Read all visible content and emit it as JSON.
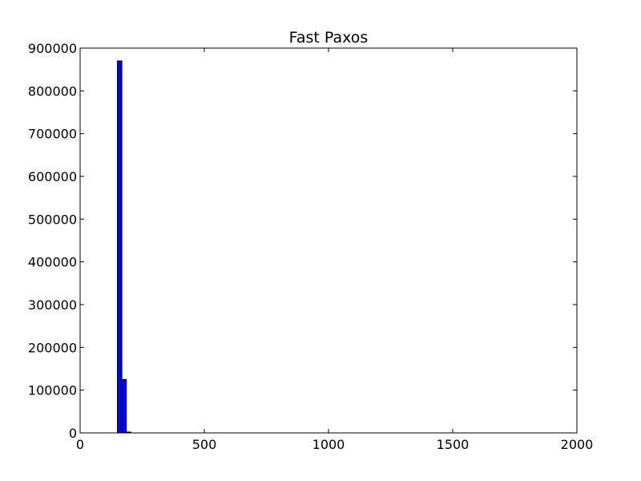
{
  "chart_data": {
    "type": "bar",
    "title": "Fast Paxos",
    "xlabel": "",
    "ylabel": "",
    "xlim": [
      0,
      2000
    ],
    "ylim": [
      0,
      900000
    ],
    "x_ticks": [
      "0",
      "500",
      "1000",
      "1500",
      "2000"
    ],
    "y_ticks": [
      "0",
      "100000",
      "200000",
      "300000",
      "400000",
      "500000",
      "600000",
      "700000",
      "800000",
      "900000"
    ],
    "grid": false,
    "bins": [
      {
        "x0": 150,
        "x1": 168,
        "value": 870000
      },
      {
        "x0": 168,
        "x1": 186,
        "value": 125000
      },
      {
        "x0": 186,
        "x1": 204,
        "value": 2000
      }
    ],
    "colors": {
      "bar_fill": "#0000ff",
      "bar_edge": "#000000"
    }
  }
}
